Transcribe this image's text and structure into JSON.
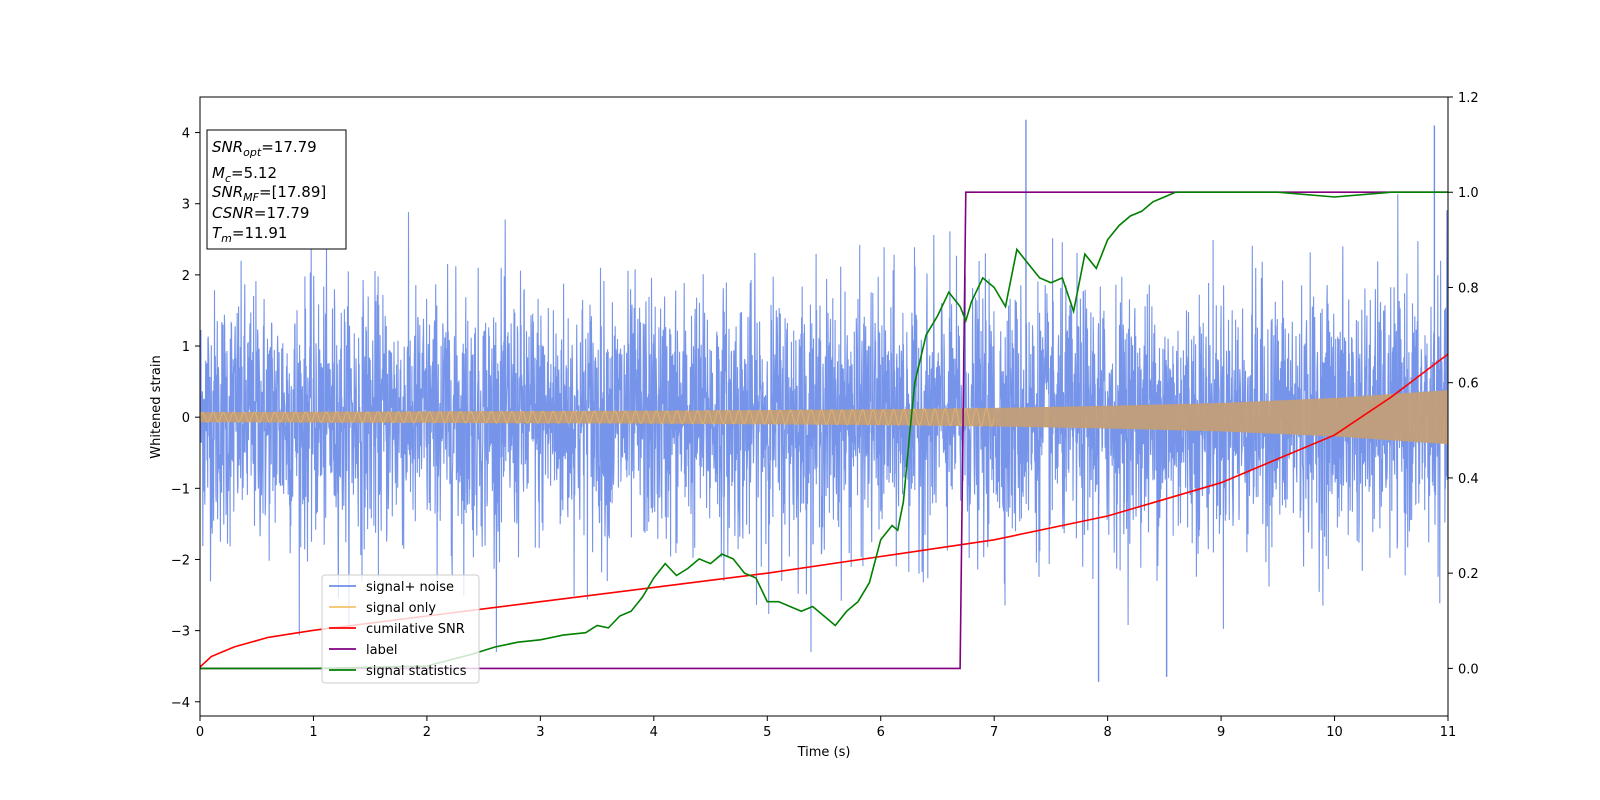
{
  "chart_data": {
    "type": "line",
    "xlabel": "Time (s)",
    "ylabel": "Whitened strain",
    "xlim": [
      0,
      11
    ],
    "ylim": [
      -4.2,
      4.5
    ],
    "y2lim": [
      -0.1,
      1.2
    ],
    "xticks": [
      0,
      1,
      2,
      3,
      4,
      5,
      6,
      7,
      8,
      9,
      10,
      11
    ],
    "yticks": [
      -4,
      -3,
      -2,
      -1,
      0,
      1,
      2,
      3,
      4
    ],
    "y2ticks": [
      0.0,
      0.2,
      0.4,
      0.6,
      0.8,
      1.0,
      1.2
    ],
    "grid": false,
    "legend_position": "lower-left",
    "info_box": {
      "lines": [
        {
          "base": "SNR",
          "sub": "opt",
          "value": "=17.79"
        },
        {
          "base": "M",
          "sub": "c",
          "value": "=5.12"
        },
        {
          "base": "SNR",
          "sub": "MF",
          "value": "=[17.89]"
        },
        {
          "base": "CSNR",
          "sub": "",
          "value": "=17.79"
        },
        {
          "base": "T",
          "sub": "m",
          "value": "=11.91"
        }
      ]
    },
    "series": [
      {
        "name": "signal+ noise",
        "color": "#6f8ee8",
        "axis": "left",
        "style": "noise",
        "typical_amplitude": [
          -1.6,
          1.6
        ],
        "peak_values": [
          {
            "x": 7.28,
            "y": 4.18
          },
          {
            "x": 10.88,
            "y": 4.1
          },
          {
            "x": 7.92,
            "y": -3.72
          },
          {
            "x": 8.52,
            "y": -3.65
          }
        ]
      },
      {
        "name": "signal only",
        "color": "#f5c36b",
        "axis": "left",
        "style": "chirp",
        "amplitude": {
          "x": [
            0,
            2,
            4,
            6,
            7,
            8,
            9,
            10,
            11
          ],
          "y": [
            0.07,
            0.08,
            0.09,
            0.11,
            0.13,
            0.16,
            0.2,
            0.27,
            0.38
          ]
        }
      },
      {
        "name": "cumilative SNR",
        "color": "#ff0000",
        "axis": "right",
        "x": [
          0,
          0.1,
          0.3,
          0.6,
          1,
          2,
          3,
          4,
          5,
          6,
          7,
          8,
          9,
          10,
          10.5,
          11
        ],
        "y": [
          0.003,
          0.025,
          0.045,
          0.065,
          0.08,
          0.11,
          0.14,
          0.17,
          0.2,
          0.235,
          0.27,
          0.32,
          0.39,
          0.49,
          0.57,
          0.66
        ]
      },
      {
        "name": "label",
        "color": "#800080",
        "axis": "right",
        "x": [
          0,
          6.7,
          6.75,
          11
        ],
        "y": [
          0,
          0,
          1,
          1
        ]
      },
      {
        "name": "signal statistics",
        "color": "#008000",
        "axis": "right",
        "x": [
          0,
          1,
          2,
          2.4,
          2.6,
          2.8,
          3.0,
          3.2,
          3.4,
          3.5,
          3.6,
          3.7,
          3.8,
          3.9,
          4.0,
          4.1,
          4.2,
          4.3,
          4.4,
          4.5,
          4.6,
          4.7,
          4.8,
          4.9,
          5.0,
          5.1,
          5.2,
          5.3,
          5.4,
          5.5,
          5.6,
          5.7,
          5.8,
          5.9,
          6.0,
          6.1,
          6.15,
          6.2,
          6.25,
          6.3,
          6.4,
          6.5,
          6.6,
          6.7,
          6.75,
          6.8,
          6.9,
          7.0,
          7.1,
          7.2,
          7.3,
          7.4,
          7.5,
          7.6,
          7.7,
          7.8,
          7.9,
          8.0,
          8.1,
          8.2,
          8.3,
          8.4,
          8.5,
          8.6,
          8.8,
          9.0,
          9.5,
          10.0,
          10.5,
          11.0
        ],
        "y": [
          0.0,
          0.0,
          0.005,
          0.03,
          0.045,
          0.055,
          0.06,
          0.07,
          0.075,
          0.09,
          0.085,
          0.11,
          0.12,
          0.15,
          0.19,
          0.22,
          0.195,
          0.21,
          0.23,
          0.22,
          0.24,
          0.23,
          0.2,
          0.19,
          0.14,
          0.14,
          0.13,
          0.12,
          0.13,
          0.11,
          0.09,
          0.12,
          0.14,
          0.18,
          0.27,
          0.3,
          0.29,
          0.35,
          0.48,
          0.6,
          0.7,
          0.74,
          0.79,
          0.76,
          0.73,
          0.77,
          0.82,
          0.8,
          0.76,
          0.88,
          0.85,
          0.82,
          0.81,
          0.82,
          0.75,
          0.87,
          0.84,
          0.9,
          0.93,
          0.95,
          0.96,
          0.98,
          0.99,
          1.0,
          1.0,
          1.0,
          1.0,
          0.99,
          1.0,
          1.0
        ]
      }
    ]
  }
}
